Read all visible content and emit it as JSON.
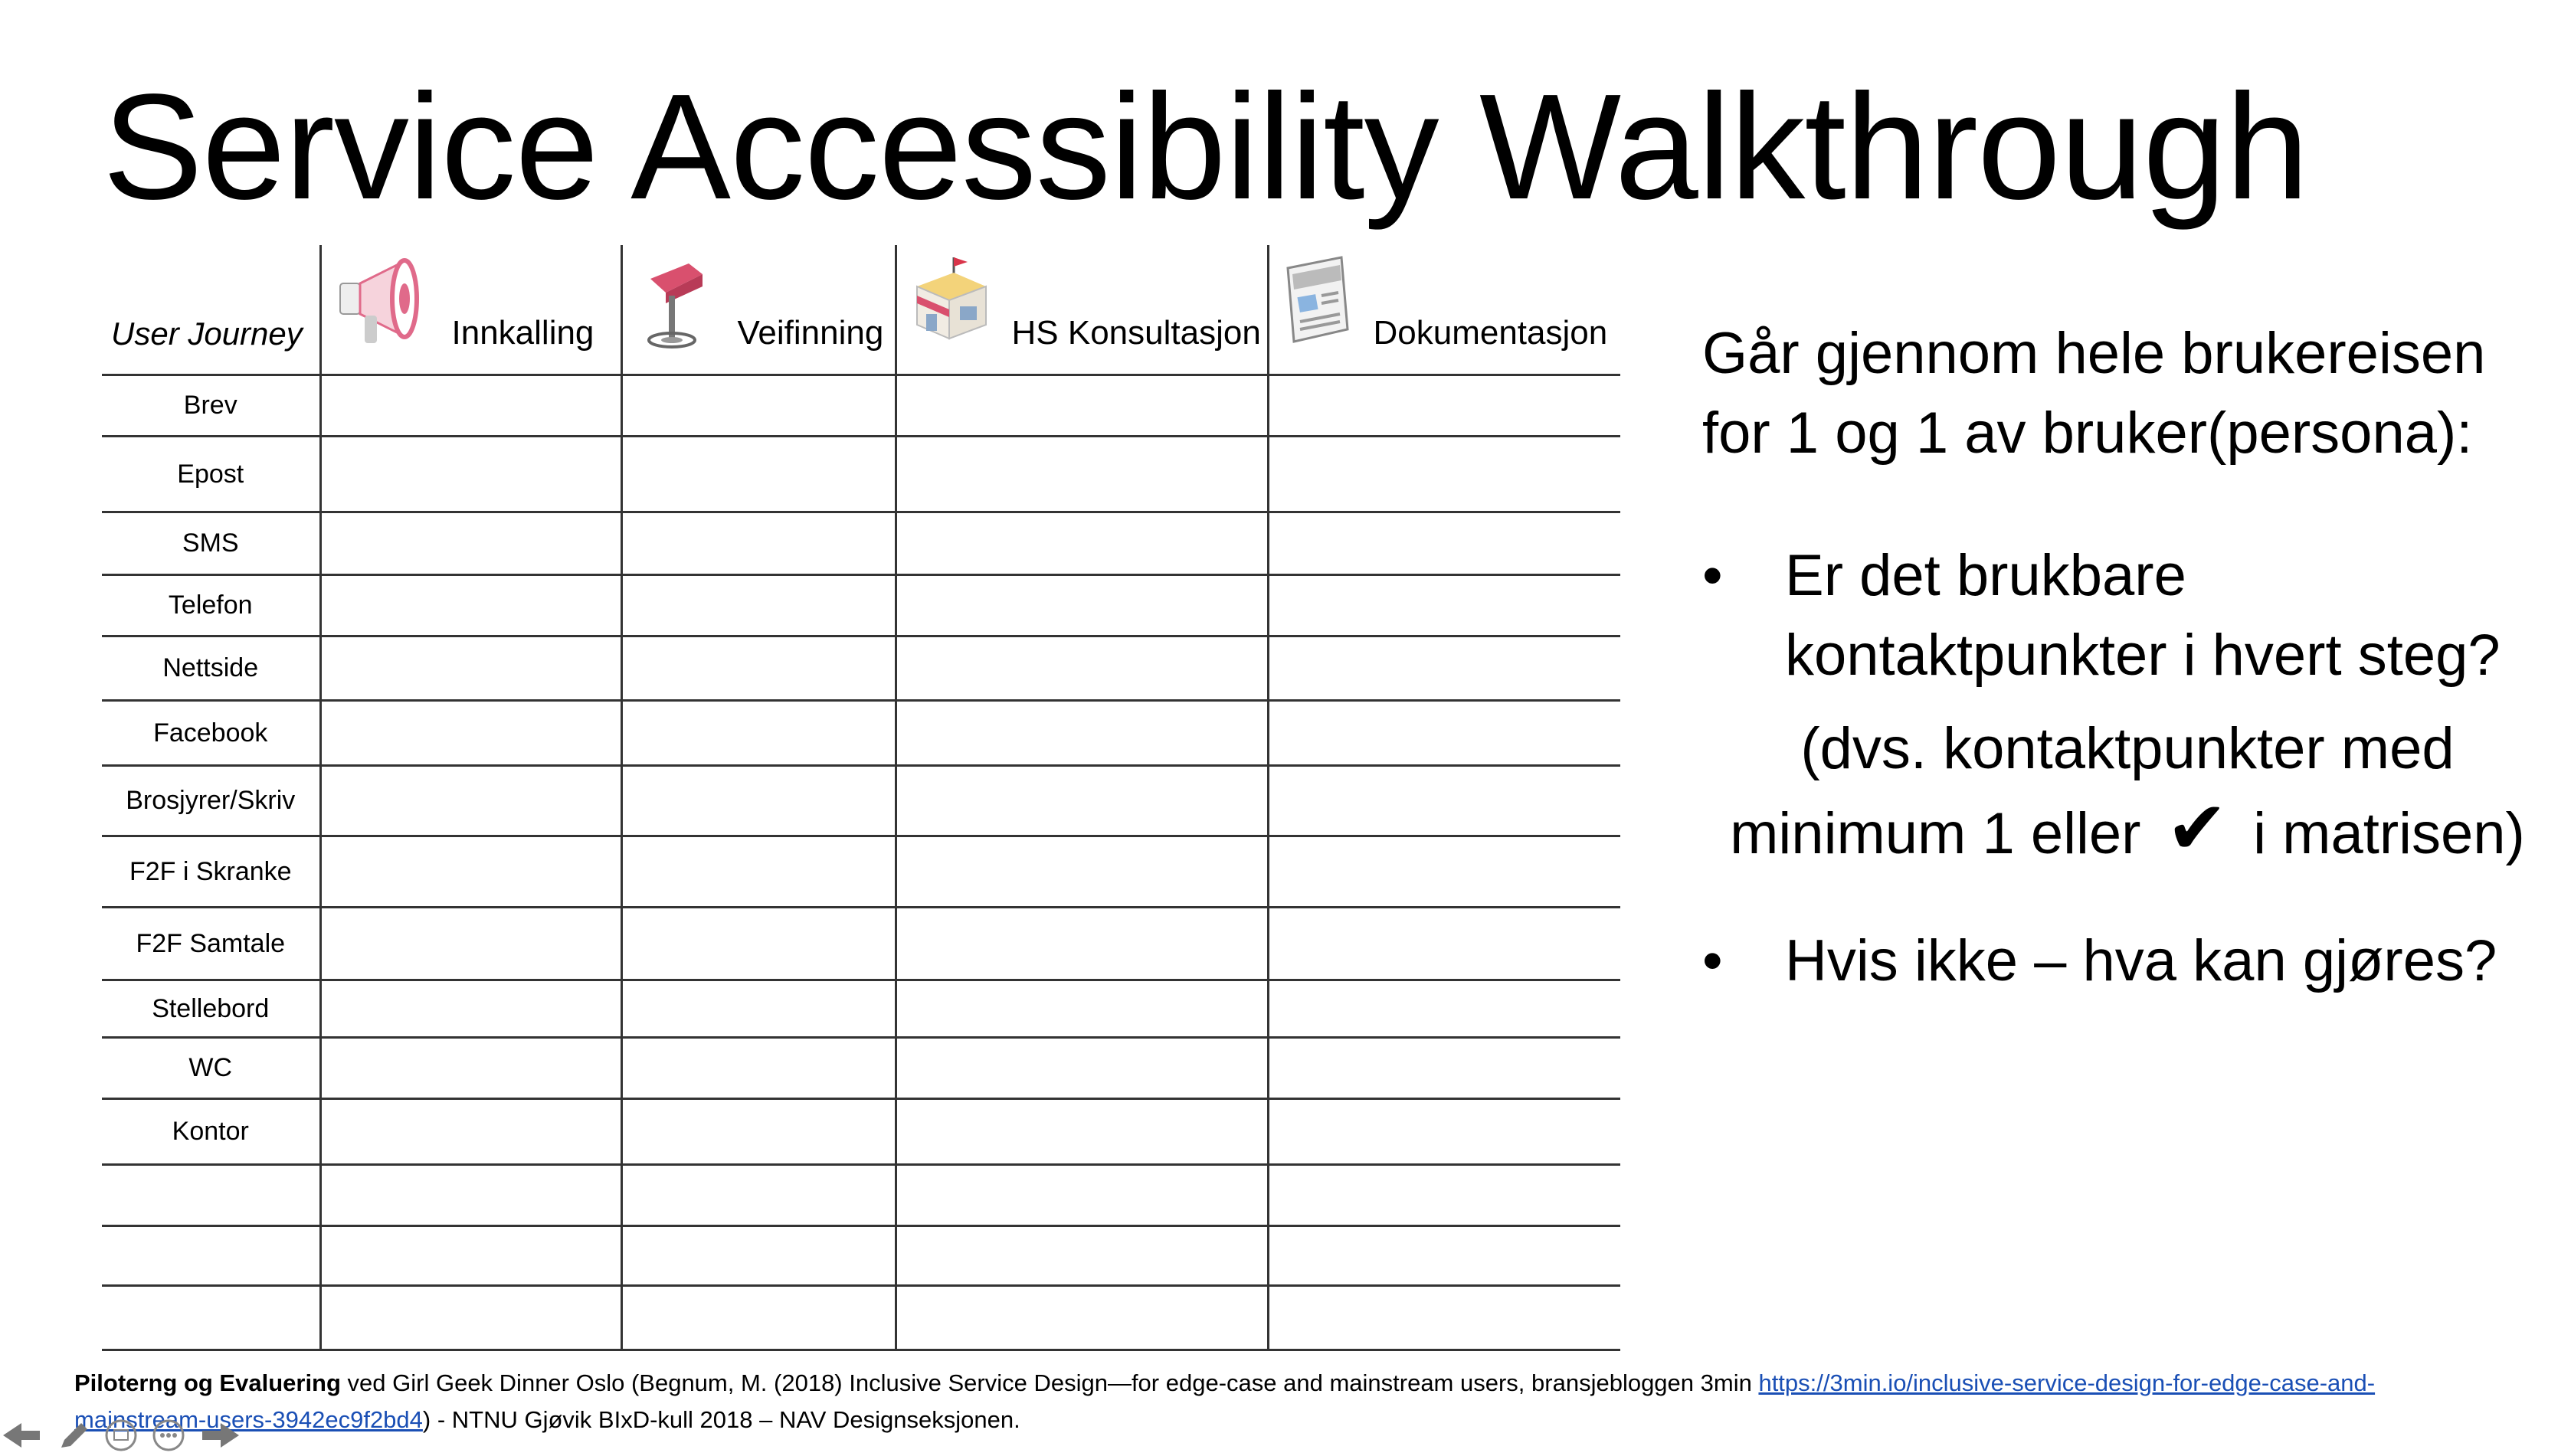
{
  "title": "Service Accessibility Walkthrough",
  "table": {
    "corner": "User Journey",
    "columns": [
      {
        "label": "Innkalling",
        "icon": "megaphone-icon"
      },
      {
        "label": "Veifinning",
        "icon": "signpost-icon"
      },
      {
        "label": "HS Konsultasjon",
        "icon": "building-icon"
      },
      {
        "label": "Dokumentasjon",
        "icon": "document-icon"
      }
    ],
    "rows": [
      "Brev",
      "Epost",
      "SMS",
      "Telefon",
      "Nettside",
      "Facebook",
      "Brosjyrer/Skriv",
      "F2F i Skranke",
      "F2F Samtale",
      "Stellebord",
      "WC",
      "Kontor",
      "",
      "",
      ""
    ]
  },
  "side": {
    "intro": "Går gjennom hele brukereisen for 1 og 1 av bruker(persona):",
    "bullet1": "Er det brukbare kontaktpunkter i hvert steg?",
    "paren_a": "(dvs. kontaktpunkter med",
    "paren_b": "minimum 1 eller",
    "check": "✔",
    "paren_c": "i matrisen)",
    "bullet2": "Hvis ikke  – hva kan gjøres?",
    "bullet_char": "•"
  },
  "footer": {
    "bold": "Piloterng og Evaluering",
    "text": " ved Girl Geek Dinner Oslo (Begnum, M. (2018) Inclusive Service Design—for edge-case and mainstream users, bransjebloggen 3min ",
    "link": "https://3min.io/inclusive-service-design-for-edge-case-and-mainstream-users-3942ec9f2bd4",
    "after": ") - NTNU Gjøvik BIxD-kull 2018 – NAV Designseksjonen."
  },
  "nav_icons": [
    "arrow-left-icon",
    "pen-icon",
    "slides-icon",
    "more-icon",
    "arrow-right-icon"
  ],
  "colors": {
    "link": "#1a4fb5",
    "megaphone": "#e06a8a",
    "sign": "#d9506e",
    "flag": "#d9344a"
  }
}
